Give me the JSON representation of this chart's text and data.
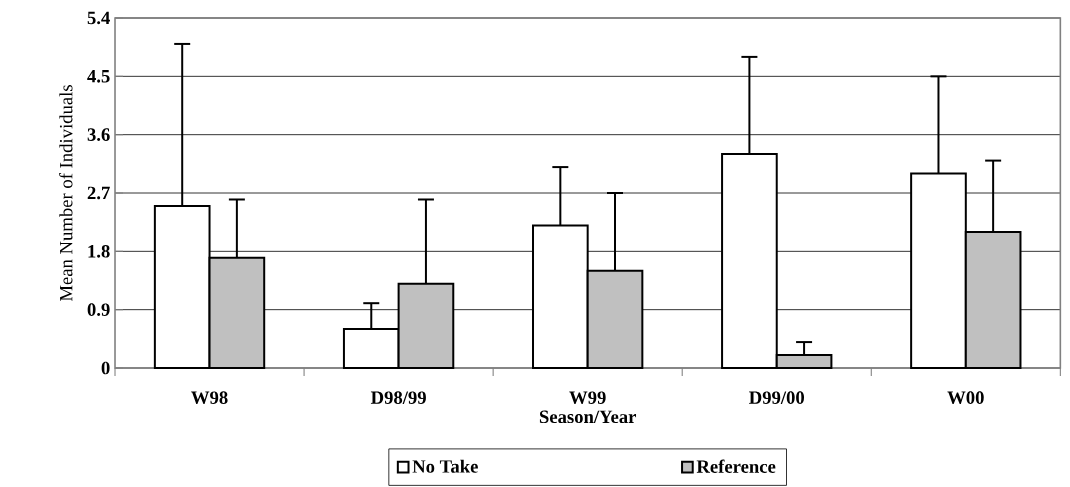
{
  "chart_data": {
    "type": "bar",
    "xlabel": "Season/Year",
    "ylabel": "Mean Number of Individuals",
    "categories": [
      "W98",
      "D98/99",
      "W99",
      "D99/00",
      "W00"
    ],
    "series": [
      {
        "name": "No Take",
        "color": "#ffffff",
        "values": [
          2.5,
          0.6,
          2.2,
          3.3,
          3.0
        ],
        "errors": [
          2.5,
          0.4,
          0.9,
          1.5,
          1.5
        ]
      },
      {
        "name": "Reference",
        "color": "#c0c0c0",
        "values": [
          1.7,
          1.3,
          1.5,
          0.2,
          2.1
        ],
        "errors": [
          0.9,
          1.3,
          1.2,
          0.2,
          1.1
        ]
      }
    ],
    "ylim": [
      0,
      5.4
    ],
    "yticks": [
      0,
      0.9,
      1.8,
      2.7,
      3.6,
      4.5,
      5.4
    ],
    "grid": "y",
    "legend": "bottom"
  }
}
